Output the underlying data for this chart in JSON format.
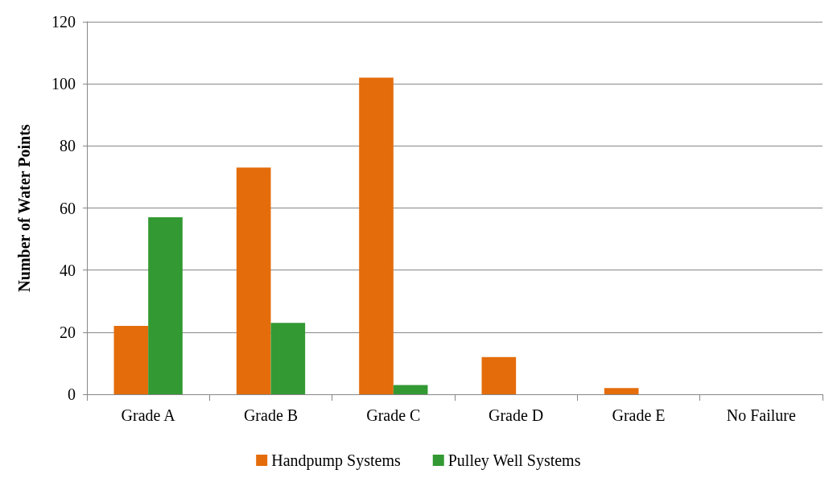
{
  "chart_data": {
    "type": "bar",
    "ylabel": "Number of Water Points",
    "categories": [
      "Grade A",
      "Grade B",
      "Grade C",
      "Grade D",
      "Grade E",
      "No Failure"
    ],
    "series": [
      {
        "name": "Handpump Systems",
        "color": "#e46c0a",
        "values": [
          22,
          73,
          102,
          12,
          2,
          0
        ]
      },
      {
        "name": "Pulley Well Systems",
        "color": "#339933",
        "values": [
          57,
          23,
          3,
          0,
          0,
          0
        ]
      }
    ],
    "ylim": [
      0,
      120
    ],
    "yticks": [
      0,
      20,
      40,
      60,
      80,
      100,
      120
    ],
    "grid": "y",
    "legend": "bottom"
  }
}
